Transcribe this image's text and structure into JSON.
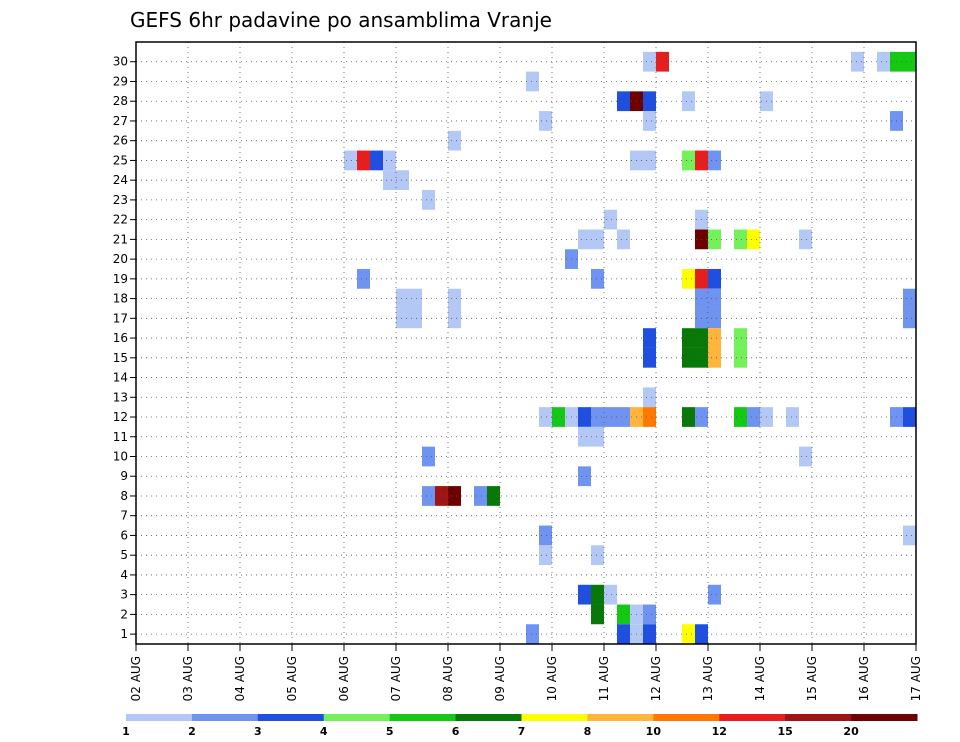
{
  "chart_data": {
    "type": "heatmap",
    "title": "GEFS 6hr padavine po ansamblima Vranje",
    "x_tick_labels": [
      "02 AUG",
      "03 AUG",
      "04 AUG",
      "05 AUG",
      "06 AUG",
      "07 AUG",
      "08 AUG",
      "09 AUG",
      "10 AUG",
      "11 AUG",
      "12 AUG",
      "13 AUG",
      "14 AUG",
      "15 AUG",
      "16 AUG",
      "17 AUG"
    ],
    "y_tick_labels": [
      "1",
      "2",
      "3",
      "4",
      "5",
      "6",
      "7",
      "8",
      "9",
      "10",
      "11",
      "12",
      "13",
      "14",
      "15",
      "16",
      "17",
      "18",
      "19",
      "20",
      "21",
      "22",
      "23",
      "24",
      "25",
      "26",
      "27",
      "28",
      "29",
      "30"
    ],
    "time_step_hours": 6,
    "time_start": "02 AUG 00Z",
    "x_range": [
      "02 AUG 00Z",
      "17 AUG 00Z"
    ],
    "y_range": [
      1,
      30
    ],
    "grid": true,
    "colorbar": {
      "labels": [
        "1",
        "2",
        "3",
        "4",
        "5",
        "6",
        "7",
        "8",
        "10",
        "12",
        "15",
        "20"
      ],
      "colors": [
        "#b4c8f5",
        "#6f93f0",
        "#1e4fe0",
        "#73f05a",
        "#14c814",
        "#087808",
        "#ffff00",
        "#ffb43c",
        "#ff7800",
        "#e61e1e",
        "#a01414",
        "#6e0000"
      ]
    },
    "cells": [
      {
        "member": 30,
        "time": "11 AUG 18Z",
        "class": 1
      },
      {
        "member": 30,
        "time": "12 AUG 00Z",
        "class": 10
      },
      {
        "member": 30,
        "time": "15 AUG 18Z",
        "class": 1
      },
      {
        "member": 30,
        "time": "16 AUG 06Z",
        "class": 1
      },
      {
        "member": 30,
        "time": "16 AUG 12Z",
        "class": 5
      },
      {
        "member": 30,
        "time": "16 AUG 18Z",
        "class": 5
      },
      {
        "member": 29,
        "time": "09 AUG 12Z",
        "class": 1
      },
      {
        "member": 28,
        "time": "11 AUG 06Z",
        "class": 3
      },
      {
        "member": 28,
        "time": "11 AUG 12Z",
        "class": 12
      },
      {
        "member": 28,
        "time": "11 AUG 18Z",
        "class": 3
      },
      {
        "member": 28,
        "time": "12 AUG 12Z",
        "class": 1
      },
      {
        "member": 28,
        "time": "14 AUG 00Z",
        "class": 1
      },
      {
        "member": 27,
        "time": "09 AUG 18Z",
        "class": 1
      },
      {
        "member": 27,
        "time": "11 AUG 18Z",
        "class": 1
      },
      {
        "member": 27,
        "time": "16 AUG 12Z",
        "class": 2
      },
      {
        "member": 26,
        "time": "08 AUG 00Z",
        "class": 1
      },
      {
        "member": 25,
        "time": "06 AUG 00Z",
        "class": 1
      },
      {
        "member": 25,
        "time": "06 AUG 06Z",
        "class": 10
      },
      {
        "member": 25,
        "time": "06 AUG 12Z",
        "class": 3
      },
      {
        "member": 25,
        "time": "06 AUG 18Z",
        "class": 1
      },
      {
        "member": 25,
        "time": "11 AUG 12Z",
        "class": 1
      },
      {
        "member": 25,
        "time": "11 AUG 18Z",
        "class": 1
      },
      {
        "member": 25,
        "time": "12 AUG 12Z",
        "class": 4
      },
      {
        "member": 25,
        "time": "12 AUG 18Z",
        "class": 10
      },
      {
        "member": 25,
        "time": "13 AUG 00Z",
        "class": 2
      },
      {
        "member": 24,
        "time": "06 AUG 18Z",
        "class": 1
      },
      {
        "member": 24,
        "time": "07 AUG 00Z",
        "class": 1
      },
      {
        "member": 23,
        "time": "07 AUG 12Z",
        "class": 1
      },
      {
        "member": 22,
        "time": "11 AUG 00Z",
        "class": 1
      },
      {
        "member": 22,
        "time": "12 AUG 18Z",
        "class": 1
      },
      {
        "member": 21,
        "time": "10 AUG 12Z",
        "class": 1
      },
      {
        "member": 21,
        "time": "10 AUG 18Z",
        "class": 1
      },
      {
        "member": 21,
        "time": "11 AUG 06Z",
        "class": 1
      },
      {
        "member": 21,
        "time": "12 AUG 18Z",
        "class": 12
      },
      {
        "member": 21,
        "time": "13 AUG 00Z",
        "class": 4
      },
      {
        "member": 21,
        "time": "13 AUG 12Z",
        "class": 4
      },
      {
        "member": 21,
        "time": "13 AUG 18Z",
        "class": 7
      },
      {
        "member": 21,
        "time": "14 AUG 18Z",
        "class": 1
      },
      {
        "member": 20,
        "time": "10 AUG 06Z",
        "class": 2
      },
      {
        "member": 19,
        "time": "06 AUG 06Z",
        "class": 2
      },
      {
        "member": 19,
        "time": "10 AUG 18Z",
        "class": 2
      },
      {
        "member": 19,
        "time": "12 AUG 12Z",
        "class": 7
      },
      {
        "member": 19,
        "time": "12 AUG 18Z",
        "class": 10
      },
      {
        "member": 19,
        "time": "13 AUG 00Z",
        "class": 3
      },
      {
        "member": 18,
        "time": "07 AUG 00Z",
        "class": 1
      },
      {
        "member": 18,
        "time": "07 AUG 06Z",
        "class": 1
      },
      {
        "member": 18,
        "time": "08 AUG 00Z",
        "class": 1
      },
      {
        "member": 18,
        "time": "12 AUG 18Z",
        "class": 2
      },
      {
        "member": 18,
        "time": "13 AUG 00Z",
        "class": 2
      },
      {
        "member": 18,
        "time": "16 AUG 18Z",
        "class": 2
      },
      {
        "member": 17,
        "time": "07 AUG 00Z",
        "class": 1
      },
      {
        "member": 17,
        "time": "07 AUG 06Z",
        "class": 1
      },
      {
        "member": 17,
        "time": "08 AUG 00Z",
        "class": 1
      },
      {
        "member": 17,
        "time": "12 AUG 18Z",
        "class": 2
      },
      {
        "member": 17,
        "time": "13 AUG 00Z",
        "class": 2
      },
      {
        "member": 17,
        "time": "16 AUG 18Z",
        "class": 2
      },
      {
        "member": 16,
        "time": "11 AUG 18Z",
        "class": 3
      },
      {
        "member": 16,
        "time": "12 AUG 12Z",
        "class": 6
      },
      {
        "member": 16,
        "time": "12 AUG 18Z",
        "class": 6
      },
      {
        "member": 16,
        "time": "13 AUG 00Z",
        "class": 8
      },
      {
        "member": 16,
        "time": "13 AUG 12Z",
        "class": 4
      },
      {
        "member": 15,
        "time": "11 AUG 18Z",
        "class": 3
      },
      {
        "member": 15,
        "time": "12 AUG 12Z",
        "class": 6
      },
      {
        "member": 15,
        "time": "12 AUG 18Z",
        "class": 6
      },
      {
        "member": 15,
        "time": "13 AUG 00Z",
        "class": 8
      },
      {
        "member": 15,
        "time": "13 AUG 12Z",
        "class": 4
      },
      {
        "member": 13,
        "time": "11 AUG 18Z",
        "class": 1
      },
      {
        "member": 12,
        "time": "09 AUG 18Z",
        "class": 1
      },
      {
        "member": 12,
        "time": "10 AUG 00Z",
        "class": 5
      },
      {
        "member": 12,
        "time": "10 AUG 06Z",
        "class": 1
      },
      {
        "member": 12,
        "time": "10 AUG 12Z",
        "class": 3
      },
      {
        "member": 12,
        "time": "10 AUG 18Z",
        "class": 2
      },
      {
        "member": 12,
        "time": "11 AUG 00Z",
        "class": 2
      },
      {
        "member": 12,
        "time": "11 AUG 06Z",
        "class": 2
      },
      {
        "member": 12,
        "time": "11 AUG 12Z",
        "class": 8
      },
      {
        "member": 12,
        "time": "11 AUG 18Z",
        "class": 9
      },
      {
        "member": 12,
        "time": "12 AUG 12Z",
        "class": 6
      },
      {
        "member": 12,
        "time": "12 AUG 18Z",
        "class": 2
      },
      {
        "member": 12,
        "time": "13 AUG 12Z",
        "class": 5
      },
      {
        "member": 12,
        "time": "13 AUG 18Z",
        "class": 2
      },
      {
        "member": 12,
        "time": "14 AUG 00Z",
        "class": 1
      },
      {
        "member": 12,
        "time": "14 AUG 12Z",
        "class": 1
      },
      {
        "member": 12,
        "time": "16 AUG 12Z",
        "class": 2
      },
      {
        "member": 12,
        "time": "16 AUG 18Z",
        "class": 3
      },
      {
        "member": 11,
        "time": "10 AUG 12Z",
        "class": 1
      },
      {
        "member": 11,
        "time": "10 AUG 18Z",
        "class": 1
      },
      {
        "member": 10,
        "time": "07 AUG 12Z",
        "class": 2
      },
      {
        "member": 10,
        "time": "14 AUG 18Z",
        "class": 1
      },
      {
        "member": 9,
        "time": "10 AUG 12Z",
        "class": 2
      },
      {
        "member": 8,
        "time": "07 AUG 12Z",
        "class": 2
      },
      {
        "member": 8,
        "time": "07 AUG 18Z",
        "class": 11
      },
      {
        "member": 8,
        "time": "08 AUG 00Z",
        "class": 12
      },
      {
        "member": 8,
        "time": "08 AUG 12Z",
        "class": 2
      },
      {
        "member": 8,
        "time": "08 AUG 18Z",
        "class": 6
      },
      {
        "member": 6,
        "time": "09 AUG 18Z",
        "class": 2
      },
      {
        "member": 6,
        "time": "16 AUG 18Z",
        "class": 1
      },
      {
        "member": 5,
        "time": "09 AUG 18Z",
        "class": 1
      },
      {
        "member": 5,
        "time": "10 AUG 18Z",
        "class": 1
      },
      {
        "member": 3,
        "time": "10 AUG 12Z",
        "class": 3
      },
      {
        "member": 3,
        "time": "10 AUG 18Z",
        "class": 6
      },
      {
        "member": 3,
        "time": "11 AUG 00Z",
        "class": 1
      },
      {
        "member": 3,
        "time": "13 AUG 00Z",
        "class": 2
      },
      {
        "member": 2,
        "time": "10 AUG 18Z",
        "class": 6
      },
      {
        "member": 2,
        "time": "11 AUG 06Z",
        "class": 5
      },
      {
        "member": 2,
        "time": "11 AUG 12Z",
        "class": 1
      },
      {
        "member": 2,
        "time": "11 AUG 18Z",
        "class": 2
      },
      {
        "member": 1,
        "time": "09 AUG 12Z",
        "class": 2
      },
      {
        "member": 1,
        "time": "11 AUG 06Z",
        "class": 3
      },
      {
        "member": 1,
        "time": "11 AUG 12Z",
        "class": 1
      },
      {
        "member": 1,
        "time": "11 AUG 18Z",
        "class": 3
      },
      {
        "member": 1,
        "time": "12 AUG 12Z",
        "class": 7
      },
      {
        "member": 1,
        "time": "12 AUG 18Z",
        "class": 3
      }
    ]
  }
}
